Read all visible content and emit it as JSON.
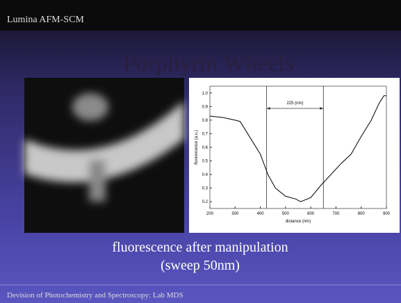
{
  "header": {
    "title": "Lumina AFM-SCM"
  },
  "slide": {
    "title": "Porphyrin Wheels",
    "caption": [
      "fluorescence after manipulation",
      "(sweep 50nm)"
    ]
  },
  "footer": {
    "text": "Devision of Photochemistry and Spectroscopy: Lab MDS"
  },
  "chart_data": {
    "type": "line",
    "x_label": "distance (nm)",
    "y_label": "fluorescence (a.u.)",
    "x": [
      200,
      250,
      300,
      320,
      350,
      400,
      430,
      460,
      500,
      540,
      560,
      600,
      640,
      680,
      720,
      760,
      800,
      840,
      870,
      890,
      900
    ],
    "series": [
      {
        "color": "#000000",
        "values": [
          0.83,
          0.82,
          0.8,
          0.79,
          0.7,
          0.55,
          0.4,
          0.3,
          0.24,
          0.22,
          0.2,
          0.23,
          0.32,
          0.4,
          0.48,
          0.55,
          0.68,
          0.8,
          0.92,
          0.98,
          0.98
        ]
      }
    ],
    "markers": [
      425,
      650
    ],
    "annotation": "225 (nm)",
    "xlim": [
      200,
      900
    ],
    "xticks": [
      200,
      300,
      400,
      500,
      600,
      700,
      800,
      900
    ],
    "ylim": [
      0.15,
      1.05
    ],
    "yticks": [
      0.2,
      0.3,
      0.4,
      0.5,
      0.6,
      0.7,
      0.8,
      0.9,
      {
        "value": 1.0,
        "label": "1.0"
      }
    ]
  }
}
